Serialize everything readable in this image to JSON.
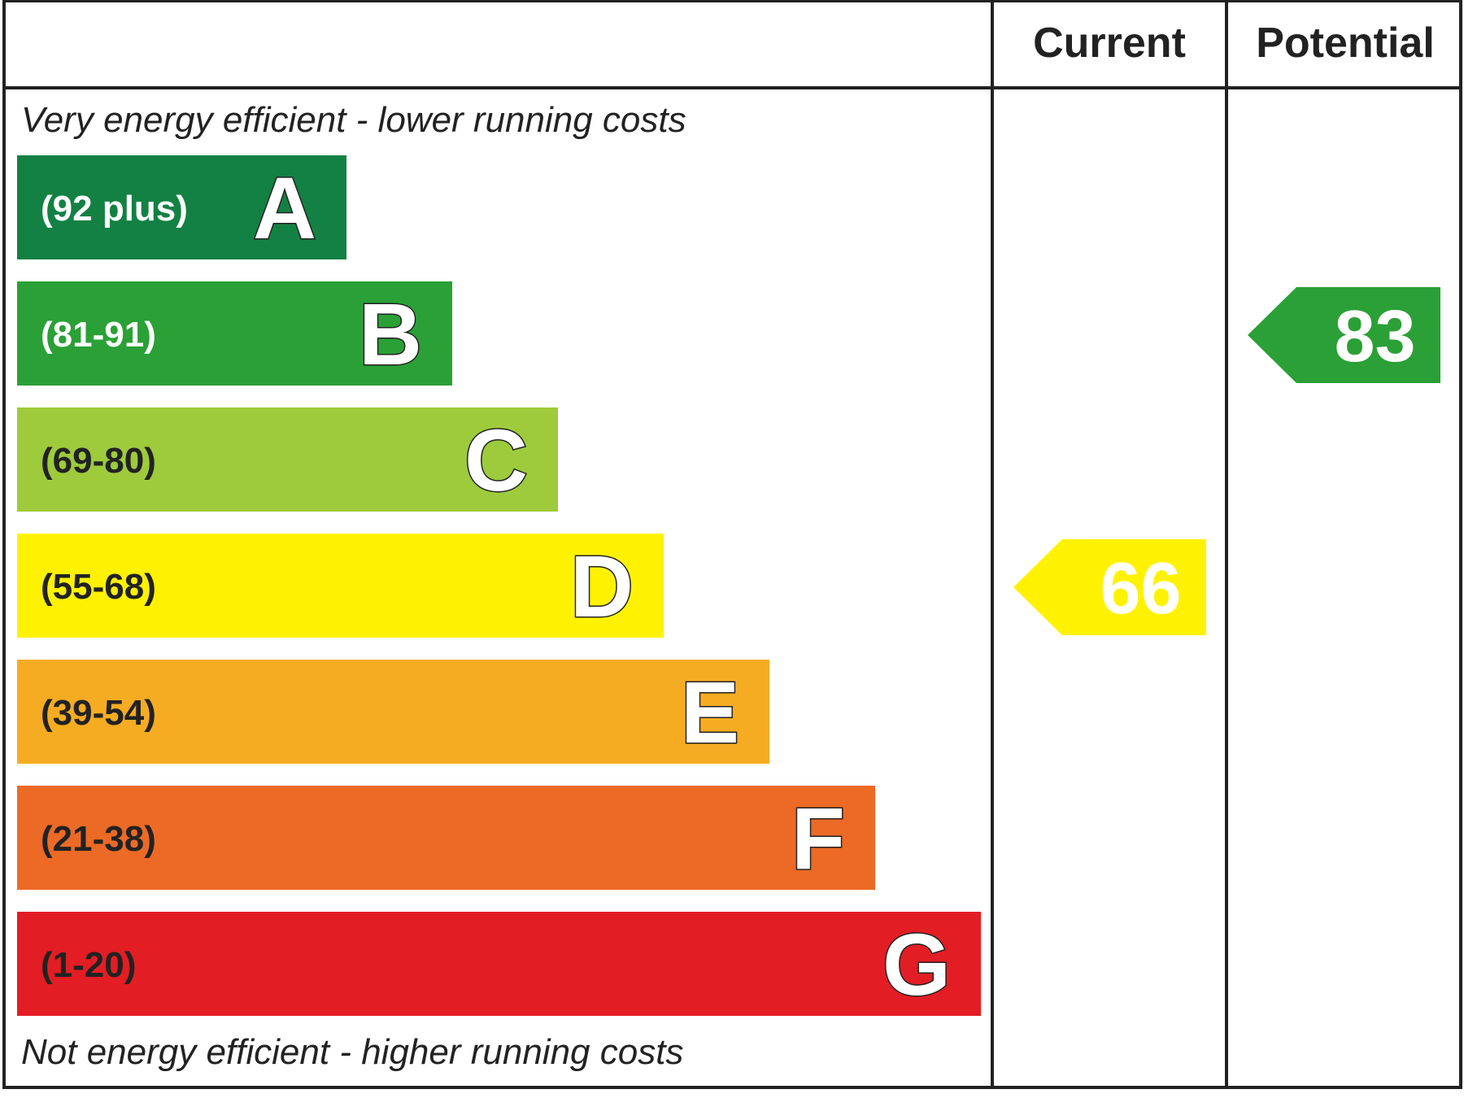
{
  "chart_data": {
    "type": "bar",
    "columns": [
      "Current",
      "Potential"
    ],
    "top_caption": "Very energy efficient - lower running costs",
    "bottom_caption": "Not energy efficient - higher running costs",
    "bands": [
      {
        "letter": "A",
        "range": "(92 plus)",
        "min": 92,
        "max": 100,
        "color": "#138143",
        "text_color": "#ffffff"
      },
      {
        "letter": "B",
        "range": "(81-91)",
        "min": 81,
        "max": 91,
        "color": "#2aa036",
        "text_color": "#ffffff"
      },
      {
        "letter": "C",
        "range": "(69-80)",
        "min": 69,
        "max": 80,
        "color": "#9dcb3c",
        "text_color": "#222222"
      },
      {
        "letter": "D",
        "range": "(55-68)",
        "min": 55,
        "max": 68,
        "color": "#fff200",
        "text_color": "#222222"
      },
      {
        "letter": "E",
        "range": "(39-54)",
        "min": 39,
        "max": 54,
        "color": "#f6ac22",
        "text_color": "#222222"
      },
      {
        "letter": "F",
        "range": "(21-38)",
        "min": 21,
        "max": 38,
        "color": "#ec6a25",
        "text_color": "#222222"
      },
      {
        "letter": "G",
        "range": "(1-20)",
        "min": 1,
        "max": 20,
        "color": "#e31d24",
        "text_color": "#222222"
      }
    ],
    "ratings": {
      "current": {
        "value": "66",
        "band": "D",
        "color": "#fff200"
      },
      "potential": {
        "value": "83",
        "band": "B",
        "color": "#2aa036"
      }
    }
  }
}
